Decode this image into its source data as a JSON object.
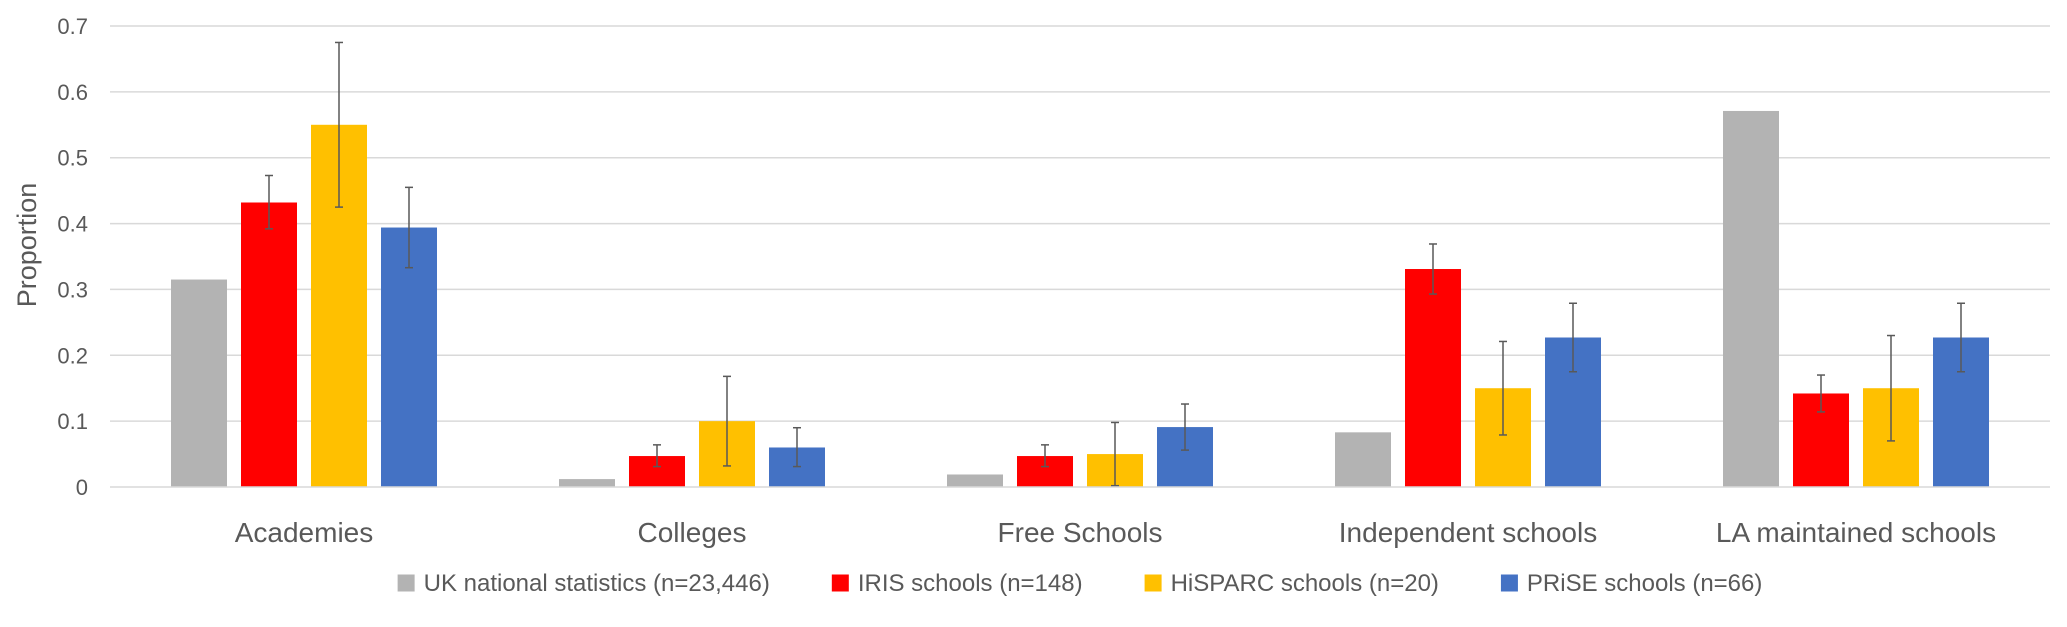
{
  "chart_data": {
    "type": "bar",
    "title": "",
    "xlabel": "",
    "ylabel": "Proportion",
    "ylim": [
      0,
      0.7
    ],
    "yticks": [
      0,
      0.1,
      0.2,
      0.3,
      0.4,
      0.5,
      0.6,
      0.7
    ],
    "ytick_labels": [
      "0",
      "0.1",
      "0.2",
      "0.3",
      "0.4",
      "0.5",
      "0.6",
      "0.7"
    ],
    "grid": true,
    "legend_position": "bottom",
    "categories": [
      "Academies",
      "Colleges",
      "Free Schools",
      "Independent schools",
      "LA maintained schools"
    ],
    "series": [
      {
        "name": "UK national statistics (n=23,446)",
        "color": "#b3b3b3",
        "values": [
          0.315,
          0.012,
          0.019,
          0.083,
          0.571
        ],
        "errors": null
      },
      {
        "name": "IRIS schools (n=148)",
        "color": "#ff0000",
        "values": [
          0.432,
          0.047,
          0.047,
          0.331,
          0.142
        ],
        "errors": [
          [
            0.392,
            0.473
          ],
          [
            0.031,
            0.064
          ],
          [
            0.031,
            0.064
          ],
          [
            0.293,
            0.369
          ],
          [
            0.114,
            0.17
          ]
        ]
      },
      {
        "name": "HiSPARC schools (n=20)",
        "color": "#ffc000",
        "values": [
          0.55,
          0.1,
          0.05,
          0.15,
          0.15
        ],
        "errors": [
          [
            0.425,
            0.675
          ],
          [
            0.032,
            0.168
          ],
          [
            0.002,
            0.098
          ],
          [
            0.079,
            0.221
          ],
          [
            0.07,
            0.23
          ]
        ]
      },
      {
        "name": "PRiSE schools (n=66)",
        "color": "#4472c4",
        "values": [
          0.394,
          0.06,
          0.091,
          0.227,
          0.227
        ],
        "errors": [
          [
            0.333,
            0.455
          ],
          [
            0.031,
            0.09
          ],
          [
            0.056,
            0.126
          ],
          [
            0.175,
            0.279
          ],
          [
            0.175,
            0.279
          ]
        ]
      }
    ]
  }
}
